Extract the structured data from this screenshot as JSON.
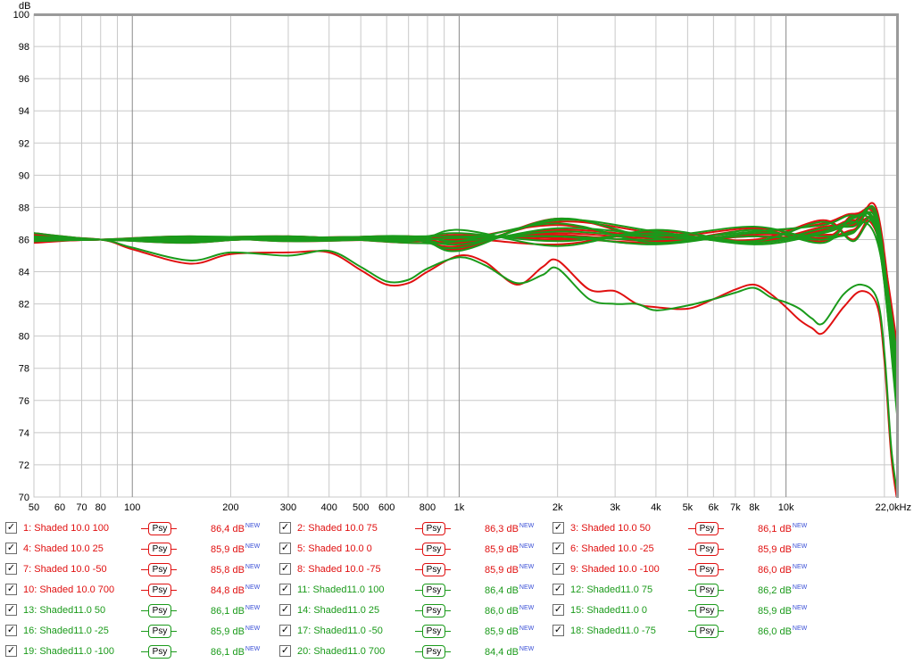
{
  "chart_data": {
    "type": "line",
    "y_unit": "dB",
    "ylim": [
      70,
      100
    ],
    "xlim": [
      50,
      22000
    ],
    "x_scale": "log",
    "grid": true,
    "y_ticks": [
      "100",
      "98",
      "96",
      "94",
      "92",
      "90",
      "88",
      "86",
      "84",
      "82",
      "80",
      "78",
      "76",
      "74",
      "72",
      "70"
    ],
    "x_ticks": [
      {
        "f": 50,
        "label": "50"
      },
      {
        "f": 60,
        "label": "60"
      },
      {
        "f": 70,
        "label": "70"
      },
      {
        "f": 80,
        "label": "80"
      },
      {
        "f": 100,
        "label": "100"
      },
      {
        "f": 200,
        "label": "200"
      },
      {
        "f": 300,
        "label": "300"
      },
      {
        "f": 400,
        "label": "400"
      },
      {
        "f": 500,
        "label": "500"
      },
      {
        "f": 600,
        "label": "600"
      },
      {
        "f": 800,
        "label": "800"
      },
      {
        "f": 1000,
        "label": "1k"
      },
      {
        "f": 2000,
        "label": "2k"
      },
      {
        "f": 3000,
        "label": "3k"
      },
      {
        "f": 4000,
        "label": "4k"
      },
      {
        "f": 5000,
        "label": "5k"
      },
      {
        "f": 6000,
        "label": "6k"
      },
      {
        "f": 7000,
        "label": "7k"
      },
      {
        "f": 8000,
        "label": "8k"
      },
      {
        "f": 10000,
        "label": "10k"
      },
      {
        "f": 22000,
        "label": "22,0kHz"
      }
    ],
    "series": [
      {
        "name": "1: Shaded 10.0 100",
        "color": "#e01010",
        "legend_value": "86,4 dB",
        "x": [
          50,
          80,
          150,
          300,
          700,
          1000,
          2000,
          4000,
          8000,
          13000,
          16000,
          19000,
          22000
        ],
        "y": [
          86.4,
          86.0,
          85.9,
          86.1,
          86.2,
          86.1,
          86.3,
          85.9,
          86.4,
          87.0,
          87.6,
          86.8,
          79.2
        ]
      },
      {
        "name": "2: Shaded 10.0 75",
        "color": "#e01010",
        "legend_value": "86,3 dB",
        "x": [
          50,
          80,
          150,
          300,
          700,
          1000,
          2000,
          4000,
          8000,
          13000,
          16000,
          19000,
          22000
        ],
        "y": [
          86.3,
          86.0,
          86.0,
          86.1,
          86.1,
          86.3,
          86.0,
          86.3,
          85.9,
          86.6,
          87.2,
          86.3,
          78.8
        ]
      },
      {
        "name": "3: Shaded 10.0 50",
        "color": "#e01010",
        "legend_value": "86,1 dB",
        "x": [
          50,
          80,
          150,
          300,
          700,
          1000,
          2000,
          4000,
          8000,
          13000,
          16000,
          19000,
          22000
        ],
        "y": [
          86.1,
          86.0,
          86.1,
          86.0,
          86.2,
          86.0,
          86.4,
          86.1,
          86.7,
          86.1,
          87.4,
          87.1,
          78.3
        ]
      },
      {
        "name": "4: Shaded 10.0 25",
        "color": "#e01010",
        "legend_value": "85,9 dB",
        "x": [
          50,
          80,
          150,
          300,
          700,
          1000,
          2000,
          4000,
          8000,
          13000,
          16000,
          19000,
          22000
        ],
        "y": [
          85.9,
          86.0,
          86.1,
          86.2,
          85.9,
          86.1,
          85.7,
          86.5,
          85.9,
          86.8,
          86.9,
          87.4,
          77.9
        ]
      },
      {
        "name": "5: Shaded 10.0 0",
        "color": "#e01010",
        "legend_value": "85,9 dB",
        "x": [
          50,
          80,
          150,
          300,
          700,
          1000,
          2000,
          4000,
          8000,
          13000,
          16000,
          19000,
          22000
        ],
        "y": [
          85.9,
          86.0,
          86.0,
          86.0,
          86.0,
          86.2,
          86.1,
          85.8,
          86.3,
          86.3,
          86.5,
          87.8,
          77.4
        ]
      },
      {
        "name": "6: Shaded 10.0 -25",
        "color": "#e01010",
        "legend_value": "85,9 dB",
        "x": [
          50,
          80,
          150,
          300,
          700,
          1000,
          2000,
          4000,
          8000,
          13000,
          16000,
          19000,
          22000
        ],
        "y": [
          85.9,
          86.0,
          85.9,
          86.1,
          86.1,
          85.8,
          86.6,
          86.2,
          86.0,
          87.2,
          86.0,
          86.9,
          76.0
        ]
      },
      {
        "name": "7: Shaded 10.0 -50",
        "color": "#e01010",
        "legend_value": "85,8 dB",
        "x": [
          50,
          80,
          150,
          300,
          700,
          1000,
          2000,
          4000,
          8000,
          13000,
          16000,
          19000,
          22000
        ],
        "y": [
          85.8,
          86.0,
          85.8,
          86.2,
          85.8,
          86.0,
          86.9,
          85.9,
          86.6,
          85.9,
          87.5,
          86.5,
          75.7
        ]
      },
      {
        "name": "8: Shaded 10.0 -75",
        "color": "#e01010",
        "legend_value": "85,9 dB",
        "x": [
          50,
          80,
          150,
          300,
          700,
          1000,
          2000,
          4000,
          8000,
          13000,
          16000,
          19000,
          22000
        ],
        "y": [
          85.9,
          86.0,
          86.2,
          85.9,
          86.0,
          85.6,
          87.1,
          86.4,
          85.8,
          86.5,
          87.1,
          87.2,
          75.5
        ]
      },
      {
        "name": "9: Shaded 10.0 -100",
        "color": "#e01010",
        "legend_value": "86,0 dB",
        "x": [
          50,
          80,
          150,
          300,
          700,
          1000,
          2000,
          4000,
          8000,
          13000,
          16000,
          19000,
          22000
        ],
        "y": [
          86.0,
          86.0,
          86.1,
          86.0,
          86.2,
          85.4,
          87.3,
          86.0,
          86.2,
          86.1,
          86.6,
          86.6,
          75.9
        ]
      },
      {
        "name": "10: Shaded 10.0 700",
        "color": "#e01010",
        "legend_value": "84,8 dB",
        "x": [
          50,
          80,
          100,
          150,
          200,
          300,
          400,
          500,
          600,
          700,
          800,
          1000,
          1200,
          1500,
          1800,
          2000,
          2500,
          3000,
          3500,
          4000,
          5000,
          6000,
          7000,
          8000,
          9000,
          10000,
          11000,
          12000,
          13000,
          15000,
          17000,
          19000,
          20000,
          21000,
          22000
        ],
        "y": [
          86.2,
          86.0,
          85.4,
          84.5,
          85.1,
          85.2,
          85.2,
          84.1,
          83.2,
          83.3,
          84.0,
          85.0,
          84.6,
          83.2,
          84.3,
          84.7,
          82.9,
          82.8,
          82.0,
          81.8,
          81.7,
          82.3,
          82.9,
          83.2,
          82.6,
          81.8,
          81.0,
          80.5,
          80.2,
          81.8,
          82.8,
          81.9,
          78.5,
          72.5,
          69.5
        ]
      },
      {
        "name": "11: Shaded11.0 100",
        "color": "#1a9a1a",
        "legend_value": "86,4 dB",
        "x": [
          50,
          80,
          150,
          300,
          700,
          1000,
          2000,
          4000,
          8000,
          13000,
          16000,
          19000,
          22000
        ],
        "y": [
          86.4,
          86.0,
          85.9,
          86.1,
          86.2,
          86.2,
          86.2,
          86.0,
          86.5,
          86.9,
          87.5,
          86.4,
          78.5
        ]
      },
      {
        "name": "12: Shaded11.0 75",
        "color": "#1a9a1a",
        "legend_value": "86,2 dB",
        "x": [
          50,
          80,
          150,
          300,
          700,
          1000,
          2000,
          4000,
          8000,
          13000,
          16000,
          19000,
          22000
        ],
        "y": [
          86.2,
          86.0,
          86.1,
          86.0,
          86.1,
          86.4,
          85.9,
          86.4,
          85.8,
          86.5,
          87.1,
          85.9,
          77.8
        ]
      },
      {
        "name": "13: Shaded11.0 50",
        "color": "#1a9a1a",
        "legend_value": "86,1 dB",
        "x": [
          50,
          80,
          150,
          300,
          700,
          1000,
          2000,
          4000,
          8000,
          13000,
          16000,
          19000,
          22000
        ],
        "y": [
          86.1,
          86.0,
          86.2,
          86.1,
          86.2,
          85.9,
          86.5,
          86.2,
          86.8,
          86.0,
          87.3,
          86.7,
          77.1
        ]
      },
      {
        "name": "14: Shaded11.0 25",
        "color": "#1a9a1a",
        "legend_value": "86,0 dB",
        "x": [
          50,
          80,
          150,
          300,
          700,
          1000,
          2000,
          4000,
          8000,
          13000,
          16000,
          19000,
          22000
        ],
        "y": [
          86.0,
          86.0,
          86.1,
          86.2,
          85.9,
          86.6,
          85.6,
          86.6,
          85.8,
          86.7,
          86.8,
          87.0,
          76.6
        ]
      },
      {
        "name": "15: Shaded11.0 0",
        "color": "#1a9a1a",
        "legend_value": "85,9 dB",
        "x": [
          50,
          80,
          150,
          300,
          700,
          1000,
          2000,
          4000,
          8000,
          13000,
          16000,
          19000,
          22000
        ],
        "y": [
          85.9,
          86.0,
          86.0,
          86.0,
          86.0,
          86.1,
          86.2,
          85.7,
          86.4,
          86.2,
          86.4,
          87.5,
          76.0
        ]
      },
      {
        "name": "16: Shaded11.0 -25",
        "color": "#1a9a1a",
        "legend_value": "85,9 dB",
        "x": [
          50,
          80,
          150,
          300,
          700,
          1000,
          2000,
          4000,
          8000,
          13000,
          16000,
          19000,
          22000
        ],
        "y": [
          85.9,
          86.0,
          85.9,
          86.1,
          86.1,
          85.7,
          86.7,
          86.3,
          85.9,
          87.1,
          85.9,
          86.6,
          75.4
        ]
      },
      {
        "name": "17: Shaded11.0 -50",
        "color": "#1a9a1a",
        "legend_value": "85,9 dB",
        "x": [
          50,
          80,
          150,
          300,
          700,
          1000,
          2000,
          4000,
          8000,
          13000,
          16000,
          19000,
          22000
        ],
        "y": [
          85.9,
          86.0,
          85.8,
          86.2,
          85.8,
          85.9,
          87.0,
          85.8,
          86.6,
          85.8,
          87.4,
          86.3,
          75.0
        ]
      },
      {
        "name": "18: Shaded11.0 -75",
        "color": "#1a9a1a",
        "legend_value": "86,0 dB",
        "x": [
          50,
          80,
          150,
          300,
          700,
          1000,
          2000,
          4000,
          8000,
          13000,
          16000,
          19000,
          22000
        ],
        "y": [
          86.0,
          86.0,
          86.2,
          85.9,
          86.0,
          85.5,
          87.2,
          86.5,
          85.7,
          86.4,
          87.0,
          87.1,
          74.8
        ]
      },
      {
        "name": "19: Shaded11.0 -100",
        "color": "#1a9a1a",
        "legend_value": "86,1 dB",
        "x": [
          50,
          80,
          150,
          300,
          700,
          1000,
          2000,
          4000,
          8000,
          13000,
          16000,
          19000,
          22000
        ],
        "y": [
          86.1,
          86.0,
          86.1,
          86.0,
          86.2,
          85.3,
          87.3,
          86.1,
          86.2,
          86.0,
          86.5,
          86.4,
          74.6
        ]
      },
      {
        "name": "20: Shaded11.0 700",
        "color": "#1a9a1a",
        "legend_value": "84,4 dB",
        "x": [
          50,
          80,
          100,
          150,
          200,
          300,
          400,
          500,
          600,
          700,
          800,
          1000,
          1200,
          1500,
          1800,
          2000,
          2500,
          3000,
          3500,
          4000,
          5000,
          6000,
          7000,
          8000,
          9000,
          10000,
          11000,
          12000,
          13000,
          15000,
          17000,
          19000,
          20000,
          21000,
          22000
        ],
        "y": [
          86.2,
          86.0,
          85.5,
          84.7,
          85.2,
          85.0,
          85.3,
          84.3,
          83.4,
          83.5,
          84.2,
          84.9,
          84.4,
          83.3,
          83.8,
          84.2,
          82.3,
          82.0,
          82.0,
          81.6,
          81.9,
          82.3,
          82.7,
          83.0,
          82.4,
          82.1,
          81.7,
          81.1,
          80.8,
          82.6,
          83.2,
          82.3,
          79.0,
          73.0,
          70.0
        ]
      }
    ]
  },
  "legend": {
    "psy_label": "Psy",
    "new_tag": "NEW",
    "check_glyph": "✓"
  }
}
